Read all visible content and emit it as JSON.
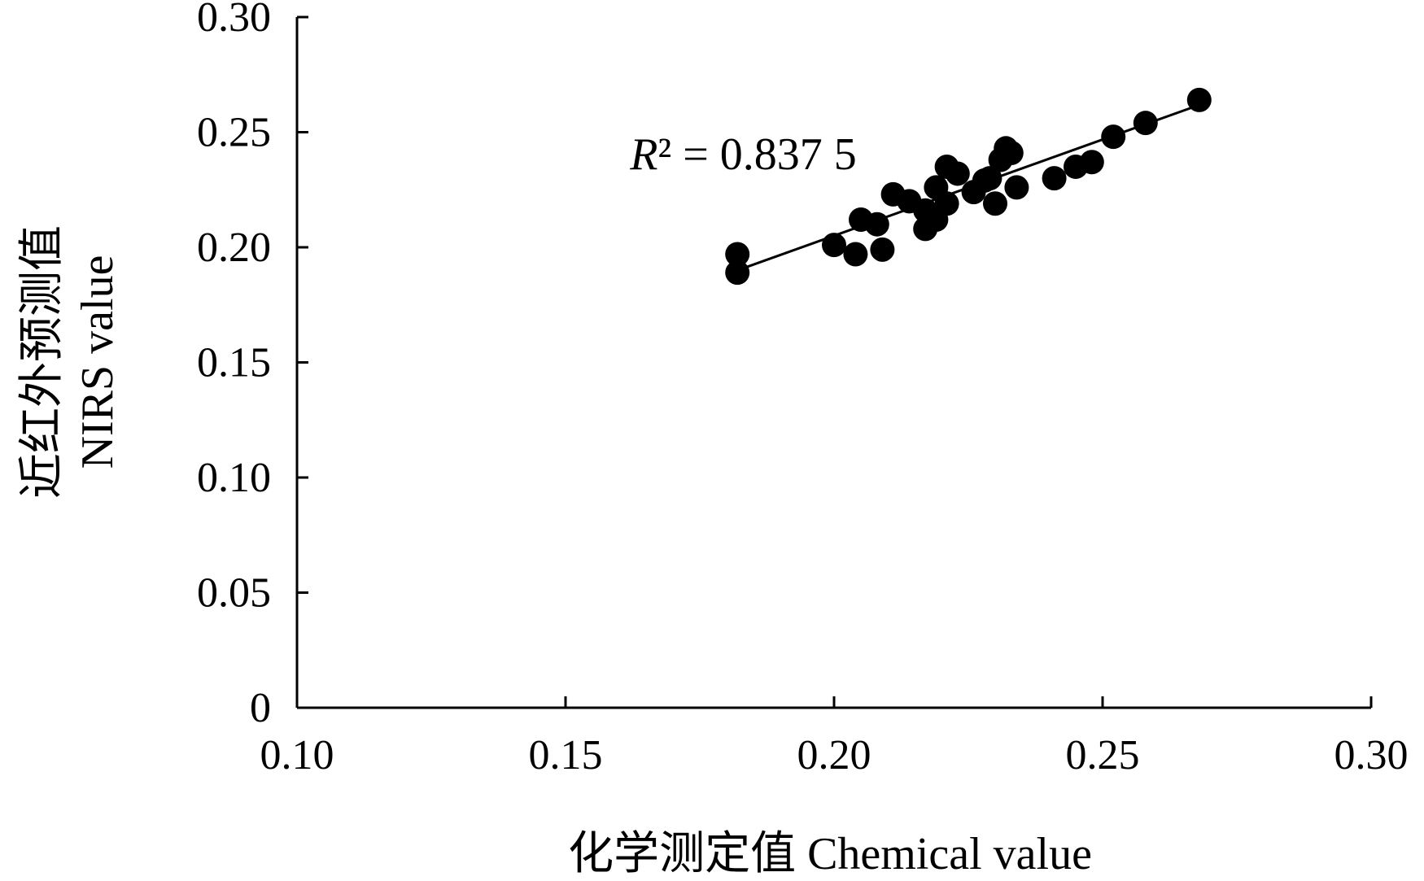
{
  "chart_data": {
    "type": "scatter",
    "xlabel": "化学测定值 Chemical value",
    "ylabel_line1": "近红外预测值",
    "ylabel_line2": "NIRS value",
    "xlim": [
      0.1,
      0.3
    ],
    "ylim": [
      0,
      0.3
    ],
    "xticks": [
      "0.10",
      "0.15",
      "0.20",
      "0.25",
      "0.30"
    ],
    "xtick_values": [
      0.1,
      0.15,
      0.2,
      0.25,
      0.3
    ],
    "yticks": [
      "0",
      "0.05",
      "0.10",
      "0.15",
      "0.20",
      "0.25",
      "0.30"
    ],
    "ytick_values": [
      0,
      0.05,
      0.1,
      0.15,
      0.2,
      0.25,
      0.3
    ],
    "annotation": {
      "symbol": "R",
      "sup": "²",
      "text": " = 0.837 5",
      "x": 0.162,
      "y": 0.234
    },
    "trendline": {
      "x1": 0.182,
      "y1": 0.19,
      "x2": 0.267,
      "y2": 0.261
    },
    "points": [
      {
        "x": 0.182,
        "y": 0.197
      },
      {
        "x": 0.182,
        "y": 0.189
      },
      {
        "x": 0.2,
        "y": 0.201
      },
      {
        "x": 0.204,
        "y": 0.197
      },
      {
        "x": 0.205,
        "y": 0.212
      },
      {
        "x": 0.208,
        "y": 0.21
      },
      {
        "x": 0.209,
        "y": 0.199
      },
      {
        "x": 0.211,
        "y": 0.223
      },
      {
        "x": 0.214,
        "y": 0.22
      },
      {
        "x": 0.217,
        "y": 0.216
      },
      {
        "x": 0.217,
        "y": 0.208
      },
      {
        "x": 0.219,
        "y": 0.212
      },
      {
        "x": 0.219,
        "y": 0.226
      },
      {
        "x": 0.221,
        "y": 0.219
      },
      {
        "x": 0.221,
        "y": 0.235
      },
      {
        "x": 0.223,
        "y": 0.232
      },
      {
        "x": 0.226,
        "y": 0.224
      },
      {
        "x": 0.228,
        "y": 0.229
      },
      {
        "x": 0.229,
        "y": 0.23
      },
      {
        "x": 0.23,
        "y": 0.219
      },
      {
        "x": 0.231,
        "y": 0.238
      },
      {
        "x": 0.232,
        "y": 0.243
      },
      {
        "x": 0.233,
        "y": 0.241
      },
      {
        "x": 0.234,
        "y": 0.226
      },
      {
        "x": 0.241,
        "y": 0.23
      },
      {
        "x": 0.245,
        "y": 0.235
      },
      {
        "x": 0.248,
        "y": 0.237
      },
      {
        "x": 0.252,
        "y": 0.248
      },
      {
        "x": 0.258,
        "y": 0.254
      },
      {
        "x": 0.268,
        "y": 0.264
      }
    ]
  }
}
